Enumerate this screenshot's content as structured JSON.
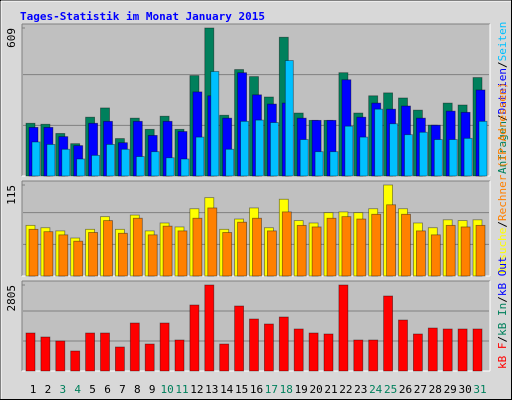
{
  "chart_data": [
    {
      "type": "bar",
      "title": "Tages-Statistik im Monat January 2015",
      "ylim": [
        0,
        609
      ],
      "yticks": [
        609
      ],
      "legend_separator": "/",
      "series": [
        {
          "name": "Anfragen",
          "color": "#00805c",
          "values": [
            217,
            213,
            175,
            133,
            242,
            280,
            154,
            238,
            192,
            246,
            192,
            413,
            609,
            250,
            438,
            409,
            325,
            571,
            259,
            229,
            229,
            425,
            259,
            330,
            342,
            321,
            271,
            209,
            300,
            292,
            405
          ]
        },
        {
          "name": "Dateien",
          "color": "#0000ff",
          "values": [
            200,
            200,
            162,
            125,
            217,
            225,
            137,
            225,
            167,
            225,
            183,
            346,
            330,
            238,
            425,
            334,
            296,
            300,
            238,
            229,
            229,
            396,
            242,
            300,
            275,
            288,
            238,
            209,
            267,
            262,
            354
          ]
        },
        {
          "name": "Seiten",
          "color": "#00c0ff",
          "values": [
            140,
            130,
            110,
            70,
            85,
            130,
            110,
            80,
            100,
            75,
            70,
            160,
            430,
            110,
            225,
            230,
            220,
            475,
            150,
            100,
            100,
            205,
            160,
            275,
            215,
            170,
            180,
            150,
            150,
            155,
            225
          ]
        }
      ]
    },
    {
      "type": "bar",
      "ylim": [
        0,
        115
      ],
      "yticks": [
        115
      ],
      "legend_separator": "/",
      "series": [
        {
          "name": "Besuche",
          "color": "#ffff00",
          "values": [
            64,
            61,
            57,
            48,
            59,
            75,
            59,
            77,
            57,
            67,
            62,
            85,
            99,
            59,
            72,
            86,
            61,
            97,
            70,
            67,
            80,
            81,
            80,
            85,
            115,
            85,
            67,
            61,
            71,
            70,
            71
          ]
        },
        {
          "name": "Rechner (IP-Adressen)",
          "color": "#ff8000",
          "values": [
            59,
            56,
            52,
            44,
            55,
            70,
            54,
            73,
            52,
            63,
            57,
            73,
            86,
            55,
            68,
            73,
            57,
            81,
            64,
            62,
            73,
            75,
            72,
            78,
            90,
            78,
            57,
            52,
            64,
            62,
            64
          ]
        }
      ]
    },
    {
      "type": "bar",
      "ylim": [
        0,
        2805
      ],
      "yticks": [
        2805
      ],
      "legend_separator": "/",
      "categories": [
        "1",
        "2",
        "3",
        "4",
        "5",
        "6",
        "7",
        "8",
        "9",
        "10",
        "11",
        "12",
        "13",
        "14",
        "15",
        "16",
        "17",
        "18",
        "19",
        "20",
        "21",
        "22",
        "23",
        "24",
        "25",
        "26",
        "27",
        "28",
        "29",
        "30",
        "31"
      ],
      "category_colors": [
        "#000000",
        "#000000",
        "#00805c",
        "#00805c",
        "#000000",
        "#000000",
        "#000000",
        "#000000",
        "#000000",
        "#00805c",
        "#00805c",
        "#000000",
        "#000000",
        "#000000",
        "#000000",
        "#000000",
        "#00805c",
        "#00805c",
        "#000000",
        "#000000",
        "#000000",
        "#000000",
        "#000000",
        "#00805c",
        "#00805c",
        "#000000",
        "#000000",
        "#000000",
        "#000000",
        "#000000",
        "#00805c"
      ],
      "series": [
        {
          "name": "kB F",
          "color": "#ff0000",
          "values": [
            1239,
            1109,
            978,
            652,
            1239,
            1239,
            783,
            1565,
            880,
            1565,
            1011,
            2152,
            2805,
            880,
            2120,
            1696,
            1533,
            1761,
            1370,
            1239,
            1207,
            2805,
            1011,
            1011,
            2446,
            1663,
            1207,
            1402,
            1370,
            1370,
            1370
          ]
        },
        {
          "name": "kB In",
          "color": "#00805c"
        },
        {
          "name": "kB Out",
          "color": "#0000ff"
        }
      ]
    }
  ]
}
